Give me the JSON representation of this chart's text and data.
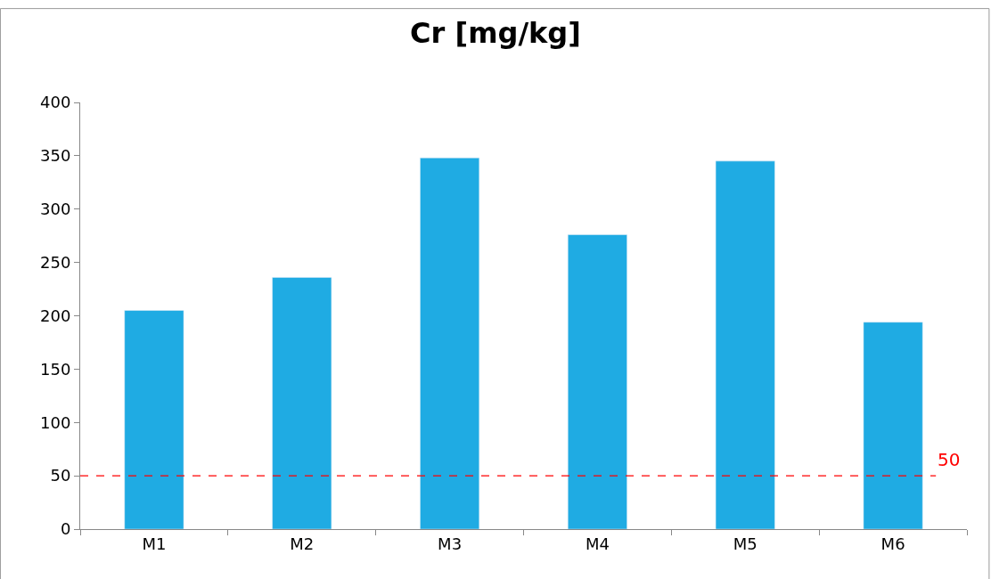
{
  "chart_data": {
    "type": "bar",
    "title": "Cr [mg/kg]",
    "categories": [
      "M1",
      "M2",
      "M3",
      "M4",
      "M5",
      "M6"
    ],
    "values": [
      205,
      236,
      348,
      276,
      345,
      194
    ],
    "color": "#1fabe3",
    "ylim": [
      0,
      400
    ],
    "yticks": [
      0,
      50,
      100,
      150,
      200,
      250,
      300,
      350,
      400
    ],
    "legend": false,
    "ref_lines": [
      {
        "axis": "y",
        "value": 50,
        "label": "50",
        "color": "#ff0000",
        "line_style": "dashed"
      }
    ]
  }
}
